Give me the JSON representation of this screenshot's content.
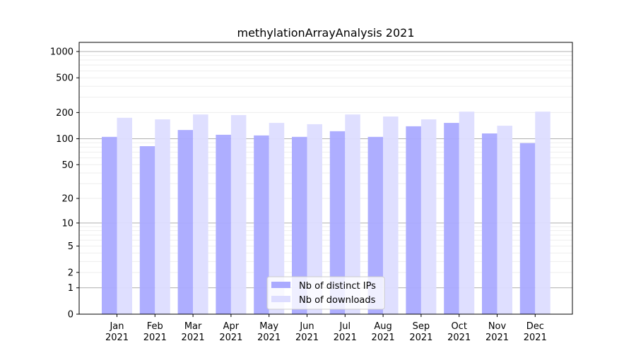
{
  "chart_data": {
    "type": "bar",
    "title": "methylationArrayAnalysis 2021",
    "xlabel": "",
    "ylabel": "",
    "yscale": "log(1+x)",
    "ylim": [
      0,
      1200
    ],
    "yticks": [
      0,
      1,
      2,
      5,
      10,
      20,
      50,
      100,
      200,
      500,
      1000
    ],
    "grid": true,
    "legend_position": "lower-center",
    "categories": [
      "Jan\n2021",
      "Feb\n2021",
      "Mar\n2021",
      "Apr\n2021",
      "May\n2021",
      "Jun\n2021",
      "Jul\n2021",
      "Aug\n2021",
      "Sep\n2021",
      "Oct\n2021",
      "Nov\n2021",
      "Dec\n2021"
    ],
    "series": [
      {
        "name": "Nb of distinct IPs",
        "color": "#aaaaff",
        "values": [
          105,
          82,
          126,
          111,
          109,
          105,
          122,
          105,
          139,
          152,
          115,
          89
        ]
      },
      {
        "name": "Nb of downloads",
        "color": "#ddddff",
        "values": [
          174,
          167,
          190,
          187,
          152,
          147,
          190,
          180,
          167,
          205,
          141,
          205
        ]
      }
    ]
  }
}
